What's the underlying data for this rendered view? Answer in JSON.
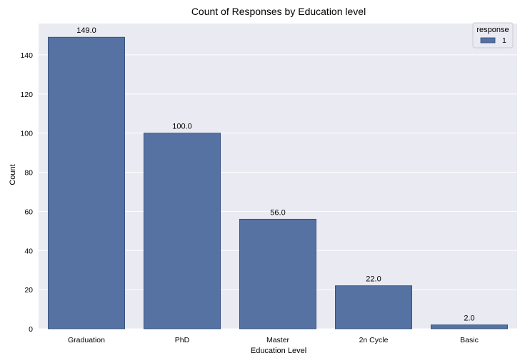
{
  "chart_data": {
    "type": "bar",
    "title": "Count of Responses by Education level",
    "xlabel": "Education Level",
    "ylabel": "Count",
    "categories": [
      "Graduation",
      "PhD",
      "Master",
      "2n Cycle",
      "Basic"
    ],
    "series": [
      {
        "name": "1",
        "values": [
          149,
          100,
          56,
          22,
          2
        ],
        "color": "#5572a3"
      }
    ],
    "data_labels": [
      "149.0",
      "100.0",
      "56.0",
      "22.0",
      "2.0"
    ],
    "ylim": [
      0,
      156
    ],
    "yticks": [
      0,
      20,
      40,
      60,
      80,
      100,
      120,
      140
    ],
    "grid": "y",
    "legend": {
      "title": "response",
      "placement": "top-right",
      "entries": [
        "1"
      ]
    },
    "colors": {
      "plot_background": "#eaeaf2",
      "grid": "#ffffff",
      "bar": "#5572a3",
      "bar_edge": "#2e4a78"
    }
  }
}
